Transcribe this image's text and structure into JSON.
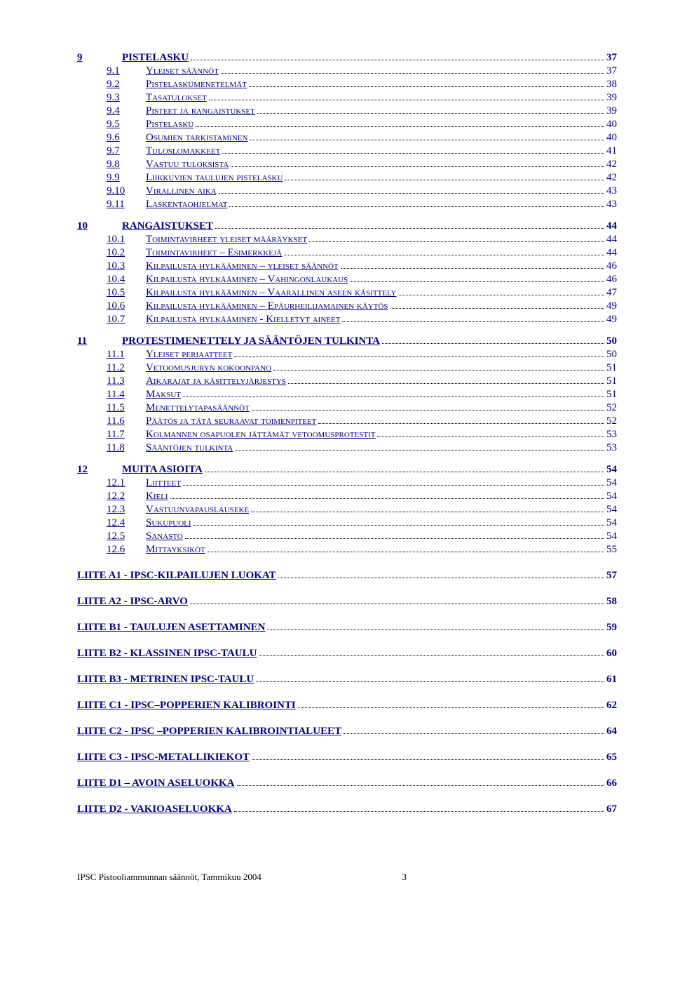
{
  "sections": [
    {
      "type": "l1",
      "num": "9",
      "label": "PISTELASKU",
      "page": "37"
    },
    {
      "type": "l2",
      "num": "9.1",
      "label": "Yleiset säännöt",
      "page": "37"
    },
    {
      "type": "l2",
      "num": "9.2",
      "label": "Pistelaskumenetelmät",
      "page": "38"
    },
    {
      "type": "l2",
      "num": "9.3",
      "label": "Tasatulokset",
      "page": "39"
    },
    {
      "type": "l2",
      "num": "9.4",
      "label": "Pisteet ja rangaistukset",
      "page": "39"
    },
    {
      "type": "l2",
      "num": "9.5",
      "label": "Pistelasku",
      "page": "40"
    },
    {
      "type": "l2",
      "num": "9.6",
      "label": "Osumien tarkistaminen",
      "page": "40"
    },
    {
      "type": "l2",
      "num": "9.7",
      "label": "Tuloslomakkeet",
      "page": "41"
    },
    {
      "type": "l2",
      "num": "9.8",
      "label": "Vastuu tuloksista",
      "page": "42"
    },
    {
      "type": "l2",
      "num": "9.9",
      "label": "Liikkuvien taulujen pistelasku",
      "page": "42"
    },
    {
      "type": "l2",
      "num": "9.10",
      "label": "Virallinen aika",
      "page": "43"
    },
    {
      "type": "l2",
      "num": "9.11",
      "label": "Laskentaohjelmat",
      "page": "43"
    },
    {
      "type": "l1",
      "num": "10",
      "label": "RANGAISTUKSET",
      "page": "44"
    },
    {
      "type": "l2",
      "num": "10.1",
      "label": "Toimintavirheet yleiset määräykset",
      "page": "44"
    },
    {
      "type": "l2",
      "num": "10.2",
      "label": "Toimintavirheet – Esimerkkejä",
      "page": "44"
    },
    {
      "type": "l2",
      "num": "10.3",
      "label": "Kilpailusta hylkääminen – yleiset säännöt",
      "page": "46"
    },
    {
      "type": "l2",
      "num": "10.4",
      "label": "Kilpailusta hylkääminen – Vahingonlaukaus",
      "page": "46"
    },
    {
      "type": "l2",
      "num": "10.5",
      "label": "Kilpailusta hylkääminen – Vaarallinen aseen käsittely",
      "page": "47"
    },
    {
      "type": "l2",
      "num": "10.6",
      "label": "Kilpailusta hylkääminen – Epäurheilijamainen käytös",
      "page": "49"
    },
    {
      "type": "l2",
      "num": "10.7",
      "label": "Kilpailusta hylkääminen  - Kielletyt aineet",
      "page": "49"
    },
    {
      "type": "l1",
      "num": "11",
      "label": "PROTESTIMENETTELY JA SÄÄNTÖJEN TULKINTA",
      "page": "50"
    },
    {
      "type": "l2",
      "num": "11.1",
      "label": "Yleiset periaatteet",
      "page": "50"
    },
    {
      "type": "l2",
      "num": "11.2",
      "label": "Vetoomusjuryn kokoonpano",
      "page": "51"
    },
    {
      "type": "l2",
      "num": "11.3",
      "label": "Aikarajat ja käsittelyjärjestys",
      "page": "51"
    },
    {
      "type": "l2",
      "num": "11.4",
      "label": "Maksut",
      "page": "51"
    },
    {
      "type": "l2",
      "num": "11.5",
      "label": "Menettelytapasäännöt",
      "page": "52"
    },
    {
      "type": "l2",
      "num": "11.6",
      "label": "Päätös ja tätä seuraavat toimenpiteet",
      "page": "52"
    },
    {
      "type": "l2",
      "num": "11.7",
      "label": "Kolmannen osapuolen jättämät vetoomusprotestit",
      "page": "53"
    },
    {
      "type": "l2",
      "num": "11.8",
      "label": "Sääntöjen tulkinta",
      "page": "53"
    },
    {
      "type": "l1",
      "num": "12",
      "label": "MUITA ASIOITA",
      "page": "54"
    },
    {
      "type": "l2",
      "num": "12.1",
      "label": "Liitteet",
      "page": "54"
    },
    {
      "type": "l2",
      "num": "12.2",
      "label": "Kieli",
      "page": "54"
    },
    {
      "type": "l2",
      "num": "12.3",
      "label": "Vastuunvapauslauseke",
      "page": "54"
    },
    {
      "type": "l2",
      "num": "12.4",
      "label": "Sukupuoli",
      "page": "54"
    },
    {
      "type": "l2",
      "num": "12.5",
      "label": "Sanasto",
      "page": "54"
    },
    {
      "type": "l2",
      "num": "12.6",
      "label": "Mittayksiköt",
      "page": "55"
    },
    {
      "type": "ax",
      "label": "LIITE A1 - IPSC-KILPAILUJEN LUOKAT",
      "page": "57"
    },
    {
      "type": "ax",
      "label": "LIITE A2 - IPSC-ARVO",
      "page": "58"
    },
    {
      "type": "ax",
      "label": "LIITE B1 - TAULUJEN ASETTAMINEN",
      "page": "59"
    },
    {
      "type": "ax",
      "label": "LIITE B2 - KLASSINEN IPSC-TAULU",
      "page": "60"
    },
    {
      "type": "ax",
      "label": "LIITE B3 - METRINEN IPSC-TAULU",
      "page": "61"
    },
    {
      "type": "ax",
      "label": "LIITE C1 - IPSC–POPPERIEN KALIBROINTI",
      "page": "62"
    },
    {
      "type": "ax",
      "label": "LIITE C2 - IPSC –POPPERIEN KALIBROINTIALUEET",
      "page": "64"
    },
    {
      "type": "ax",
      "label": "LIITE C3 - IPSC-METALLIKIEKOT",
      "page": "65"
    },
    {
      "type": "ax",
      "label": "LIITE D1 – AVOIN ASELUOKKA",
      "page": "66"
    },
    {
      "type": "ax",
      "label": "LIITE D2 - VAKIOASELUOKKA",
      "page": "67"
    }
  ],
  "footer": {
    "text": "IPSC Pistooliammunnan säännöt, Tammikuu 2004",
    "page": "3"
  },
  "colors": {
    "link": "#000080",
    "dots": "#000000",
    "background": "#ffffff",
    "footer": "#000000"
  }
}
